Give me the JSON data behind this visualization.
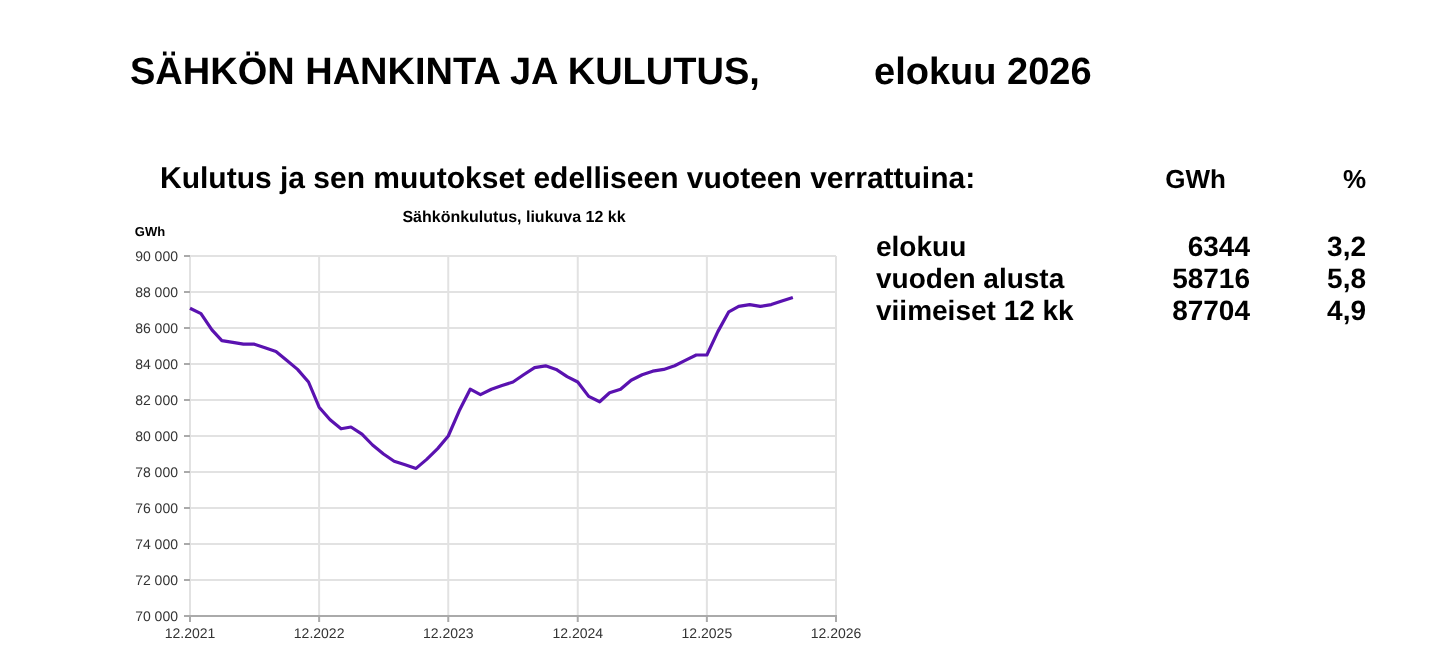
{
  "chart_data": {
    "type": "line",
    "title": "SÄHKÖN HANKINTA JA KULUTUS,",
    "subtitle": "elokuu 2026",
    "ylabel": "GWh",
    "annotations": [
      "Kulutus ja sen muutokset edelliseen vuoteen verrattuina:",
      "Sähkönkulutus, liukuva 12 kk",
      "GWh",
      "%",
      "elokuu",
      "6344",
      "3,2",
      "vuoden alusta",
      "58716",
      "5,8",
      "viimeiset 12 kk",
      "87704",
      "4,9"
    ],
    "x": [
      "2021-12",
      "2022-01",
      "2022-02",
      "2022-03",
      "2022-04",
      "2022-05",
      "2022-06",
      "2022-07",
      "2022-08",
      "2022-09",
      "2022-10",
      "2022-11",
      "2022-12",
      "2023-01",
      "2023-02",
      "2023-03",
      "2023-04",
      "2023-05",
      "2023-06",
      "2023-07",
      "2023-08",
      "2023-09",
      "2023-10",
      "2023-11",
      "2023-12",
      "2024-01",
      "2024-02",
      "2024-03",
      "2024-04",
      "2024-05",
      "2024-06",
      "2024-07",
      "2024-08",
      "2024-09",
      "2024-10",
      "2024-11",
      "2024-12",
      "2025-01",
      "2025-02",
      "2025-03",
      "2025-04",
      "2025-05",
      "2025-06",
      "2025-07",
      "2025-08",
      "2025-09",
      "2025-10",
      "2025-11",
      "2025-12",
      "2026-01",
      "2026-02",
      "2026-03",
      "2026-04",
      "2026-05",
      "2026-06",
      "2026-07",
      "2026-08"
    ],
    "series": [
      {
        "color": "#5a12b0",
        "values": [
          87100,
          86800,
          85900,
          85300,
          85200,
          85100,
          85100,
          84900,
          84700,
          84200,
          83700,
          83000,
          81600,
          80900,
          80400,
          80500,
          80100,
          79500,
          79000,
          78600,
          78400,
          78200,
          78700,
          79300,
          80000,
          81400,
          82600,
          82300,
          82600,
          82800,
          83000,
          83400,
          83800,
          83900,
          83700,
          83300,
          83000,
          82200,
          81900,
          82400,
          82600,
          83100,
          83400,
          83600,
          83700,
          83900,
          84200,
          84500,
          84500,
          85800,
          86900,
          87200,
          87300,
          87200,
          87300,
          87500,
          87700
        ]
      }
    ],
    "xlim": [
      "2021-12",
      "2026-12"
    ],
    "xticks": [
      {
        "value": "2021-12",
        "label": "12.2021"
      },
      {
        "value": "2022-12",
        "label": "12.2022"
      },
      {
        "value": "2023-12",
        "label": "12.2023"
      },
      {
        "value": "2024-12",
        "label": "12.2024"
      },
      {
        "value": "2025-12",
        "label": "12.2025"
      },
      {
        "value": "2026-12",
        "label": "12.2026"
      }
    ],
    "ylim": [
      70000,
      90000
    ],
    "yticks": [
      {
        "value": 70000,
        "label": "70 000"
      },
      {
        "value": 72000,
        "label": "72 000"
      },
      {
        "value": 74000,
        "label": "74 000"
      },
      {
        "value": 76000,
        "label": "76 000"
      },
      {
        "value": 78000,
        "label": "78 000"
      },
      {
        "value": 80000,
        "label": "80 000"
      },
      {
        "value": 82000,
        "label": "82 000"
      },
      {
        "value": 84000,
        "label": "84 000"
      },
      {
        "value": 86000,
        "label": "86 000"
      },
      {
        "value": 88000,
        "label": "88 000"
      },
      {
        "value": 90000,
        "label": "90 000"
      }
    ],
    "grid": true,
    "marker": "none",
    "line_style": "solid"
  }
}
